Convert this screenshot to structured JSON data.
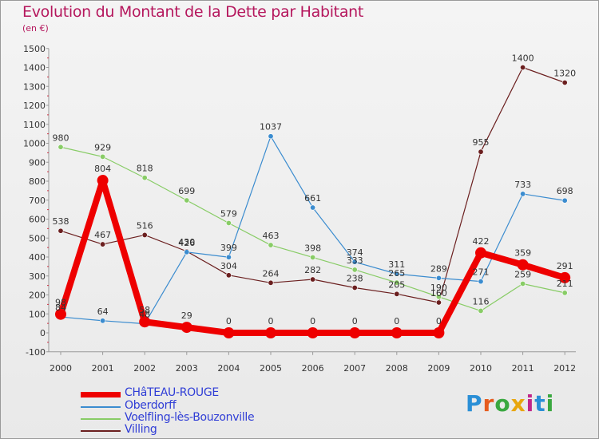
{
  "title": "Evolution du Montant de la Dette par Habitant",
  "unit": "(en €)",
  "logo": {
    "letters": [
      "P",
      "r",
      "o",
      "x",
      "i",
      "t",
      "i"
    ],
    "colors": [
      "#2a8fd6",
      "#e65c1e",
      "#3aa840",
      "#e8a60e",
      "#c0268a",
      "#2a8fd6",
      "#3aa840"
    ]
  },
  "chart_data": {
    "type": "line",
    "title": "Evolution du Montant de la Dette par Habitant",
    "ylabel": "(en €)",
    "xlabel": "",
    "ylim": [
      -100,
      1500
    ],
    "ytick_step": 100,
    "grid": false,
    "legend_position": "bottom-left",
    "x": [
      "2000",
      "2001",
      "2002",
      "2003",
      "2004",
      "2005",
      "2006",
      "2007",
      "2008",
      "2009",
      "2010",
      "2011",
      "2012"
    ],
    "series": [
      {
        "name": "CHâTEAU-ROUGE",
        "color": "#ee0000",
        "values": [
          98,
          804,
          58,
          29,
          0,
          0,
          0,
          0,
          0,
          0,
          422,
          359,
          291
        ]
      },
      {
        "name": "Oberdorff",
        "color": "#3b8ccf",
        "values": [
          84,
          64,
          48,
          426,
          399,
          1037,
          661,
          374,
          311,
          289,
          271,
          733,
          698
        ]
      },
      {
        "name": "Voelfling-lès-Bouzonville",
        "color": "#88cc66",
        "values": [
          980,
          929,
          818,
          699,
          579,
          463,
          398,
          333,
          265,
          190,
          116,
          259,
          211
        ]
      },
      {
        "name": "Villing",
        "color": "#6b1f1f",
        "values": [
          538,
          467,
          516,
          430,
          304,
          264,
          282,
          238,
          205,
          160,
          955,
          1400,
          1320
        ]
      }
    ]
  }
}
